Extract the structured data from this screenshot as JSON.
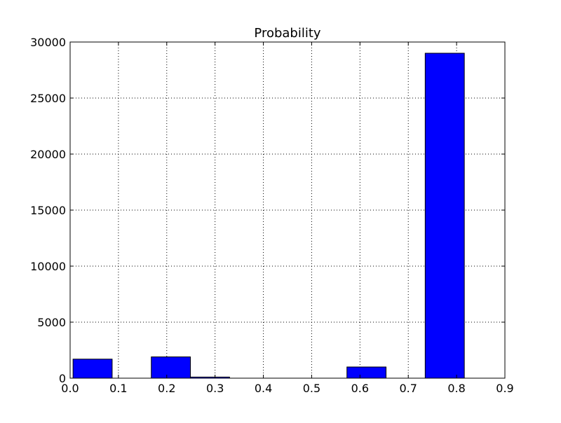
{
  "chart_data": {
    "type": "bar",
    "title": "Probability",
    "xlabel": "",
    "ylabel": "",
    "xlim": [
      0.0,
      0.9
    ],
    "ylim": [
      0,
      30000
    ],
    "grid": true,
    "bar_color": "#0000ff",
    "bar_edge_color": "#000000",
    "x_ticks": [
      {
        "value": 0.0,
        "label": "0.0"
      },
      {
        "value": 0.1,
        "label": "0.1"
      },
      {
        "value": 0.2,
        "label": "0.2"
      },
      {
        "value": 0.3,
        "label": "0.3"
      },
      {
        "value": 0.4,
        "label": "0.4"
      },
      {
        "value": 0.5,
        "label": "0.5"
      },
      {
        "value": 0.6,
        "label": "0.6"
      },
      {
        "value": 0.7,
        "label": "0.7"
      },
      {
        "value": 0.8,
        "label": "0.8"
      },
      {
        "value": 0.9,
        "label": "0.9"
      }
    ],
    "y_ticks": [
      {
        "value": 0,
        "label": "0"
      },
      {
        "value": 5000,
        "label": "5000"
      },
      {
        "value": 10000,
        "label": "10000"
      },
      {
        "value": 15000,
        "label": "15000"
      },
      {
        "value": 20000,
        "label": "20000"
      },
      {
        "value": 25000,
        "label": "25000"
      },
      {
        "value": 30000,
        "label": "30000"
      }
    ],
    "bars": [
      {
        "x_start": 0.006,
        "x_end": 0.087,
        "value": 1700
      },
      {
        "x_start": 0.168,
        "x_end": 0.249,
        "value": 1900
      },
      {
        "x_start": 0.249,
        "x_end": 0.33,
        "value": 100
      },
      {
        "x_start": 0.573,
        "x_end": 0.654,
        "value": 1000
      },
      {
        "x_start": 0.735,
        "x_end": 0.816,
        "value": 29000
      }
    ]
  }
}
